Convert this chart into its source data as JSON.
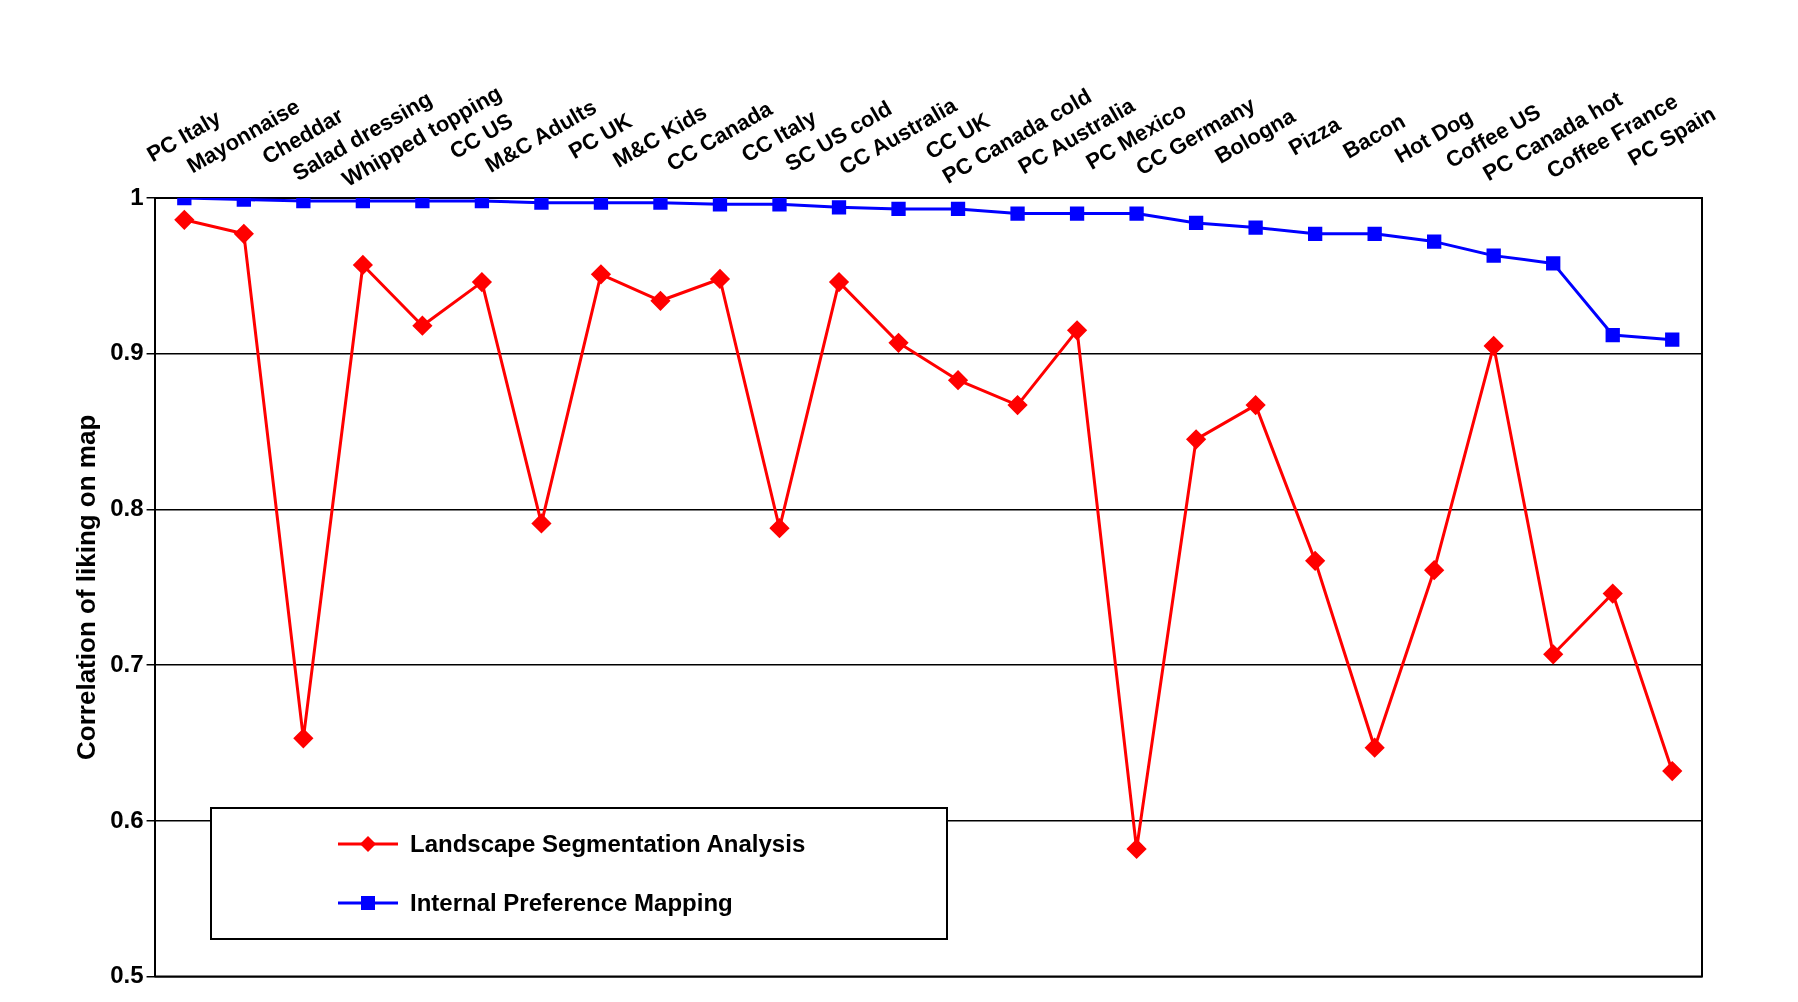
{
  "chart_data": {
    "type": "line",
    "ylabel": "Correlation of liking on map",
    "categories": [
      "PC Italy",
      "Mayonnaise",
      "Cheddar",
      "Salad dressing",
      "Whipped topping",
      "CC US",
      "M&C Adults",
      "PC UK",
      "M&C Kids",
      "CC Canada",
      "CC Italy",
      "SC US cold",
      "CC Australia",
      "CC UK",
      "PC Canada cold",
      "PC Australia",
      "PC Mexico",
      "CC Germany",
      "Bologna",
      "Pizza",
      "Bacon",
      "Hot Dog",
      "Coffee US",
      "PC Canada hot",
      "Coffee France",
      "PC Spain"
    ],
    "series": [
      {
        "name": "Landscape Segmentation Analysis",
        "color": "#ff0000",
        "marker": "diamond",
        "values": [
          0.986,
          0.977,
          0.653,
          0.957,
          0.918,
          0.946,
          0.791,
          0.951,
          0.934,
          0.948,
          0.788,
          0.946,
          0.907,
          0.883,
          0.867,
          0.915,
          0.582,
          0.845,
          0.867,
          0.767,
          0.647,
          0.761,
          0.905,
          0.707,
          0.746,
          0.632
        ]
      },
      {
        "name": "Internal Preference Mapping",
        "color": "#0000ff",
        "marker": "square",
        "values": [
          1.0,
          0.999,
          0.998,
          0.998,
          0.998,
          0.998,
          0.997,
          0.997,
          0.997,
          0.996,
          0.996,
          0.994,
          0.993,
          0.993,
          0.99,
          0.99,
          0.99,
          0.984,
          0.981,
          0.977,
          0.977,
          0.972,
          0.963,
          0.958,
          0.912,
          0.909
        ]
      }
    ],
    "ylim": [
      0.5,
      1
    ],
    "yticks": [
      0.5,
      0.6,
      0.7,
      0.8,
      0.9,
      1
    ],
    "grid": "y",
    "legend": "bottom left",
    "line_style": "solid"
  }
}
